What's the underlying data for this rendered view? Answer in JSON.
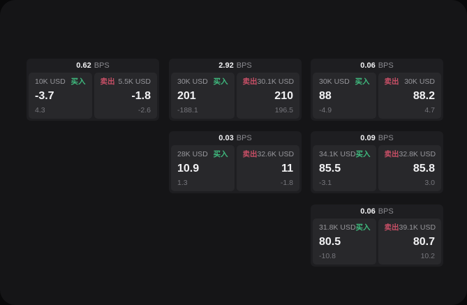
{
  "ui": {
    "bps_unit": "BPS",
    "buy_label": "买入",
    "sell_label": "卖出"
  },
  "colors": {
    "outer_background": "#09090a",
    "screen_background": "#151517",
    "card_background": "#1e1e21",
    "panel_background": "#28282b",
    "buy_green": "#3fba7e",
    "sell_red": "#c74f66",
    "value_white": "#f2f2f4",
    "label_gray": "#97979c",
    "delta_gray": "#76767c"
  },
  "layout_slots": {
    "col_lefts": [
      38,
      242,
      445
    ],
    "row_tops": [
      84,
      188,
      293
    ]
  },
  "cards": [
    {
      "grid": {
        "row": 1,
        "col": 1
      },
      "bps": "0.62",
      "buy": {
        "amount": "10K USD",
        "value": "-3.7",
        "delta": "4.3"
      },
      "sell": {
        "amount": "5.5K USD",
        "value": "-1.8",
        "delta": "-2.6"
      }
    },
    {
      "grid": {
        "row": 1,
        "col": 2
      },
      "bps": "2.92",
      "buy": {
        "amount": "30K USD",
        "value": "201",
        "delta": "-188.1"
      },
      "sell": {
        "amount": "30.1K USD",
        "value": "210",
        "delta": "196.5"
      }
    },
    {
      "grid": {
        "row": 1,
        "col": 3
      },
      "bps": "0.06",
      "buy": {
        "amount": "30K USD",
        "value": "88",
        "delta": "-4.9"
      },
      "sell": {
        "amount": "30K USD",
        "value": "88.2",
        "delta": "4.7"
      }
    },
    {
      "grid": {
        "row": 2,
        "col": 2
      },
      "bps": "0.03",
      "buy": {
        "amount": "28K USD",
        "value": "10.9",
        "delta": "1.3"
      },
      "sell": {
        "amount": "32.6K USD",
        "value": "11",
        "delta": "-1.8"
      }
    },
    {
      "grid": {
        "row": 2,
        "col": 3
      },
      "bps": "0.09",
      "buy": {
        "amount": "34.1K USD",
        "value": "85.5",
        "delta": "-3.1"
      },
      "sell": {
        "amount": "32.8K USD",
        "value": "85.8",
        "delta": "3.0"
      }
    },
    {
      "grid": {
        "row": 3,
        "col": 3
      },
      "bps": "0.06",
      "buy": {
        "amount": "31.8K USD",
        "value": "80.5",
        "delta": "-10.8"
      },
      "sell": {
        "amount": "39.1K USD",
        "value": "80.7",
        "delta": "10.2"
      }
    }
  ]
}
